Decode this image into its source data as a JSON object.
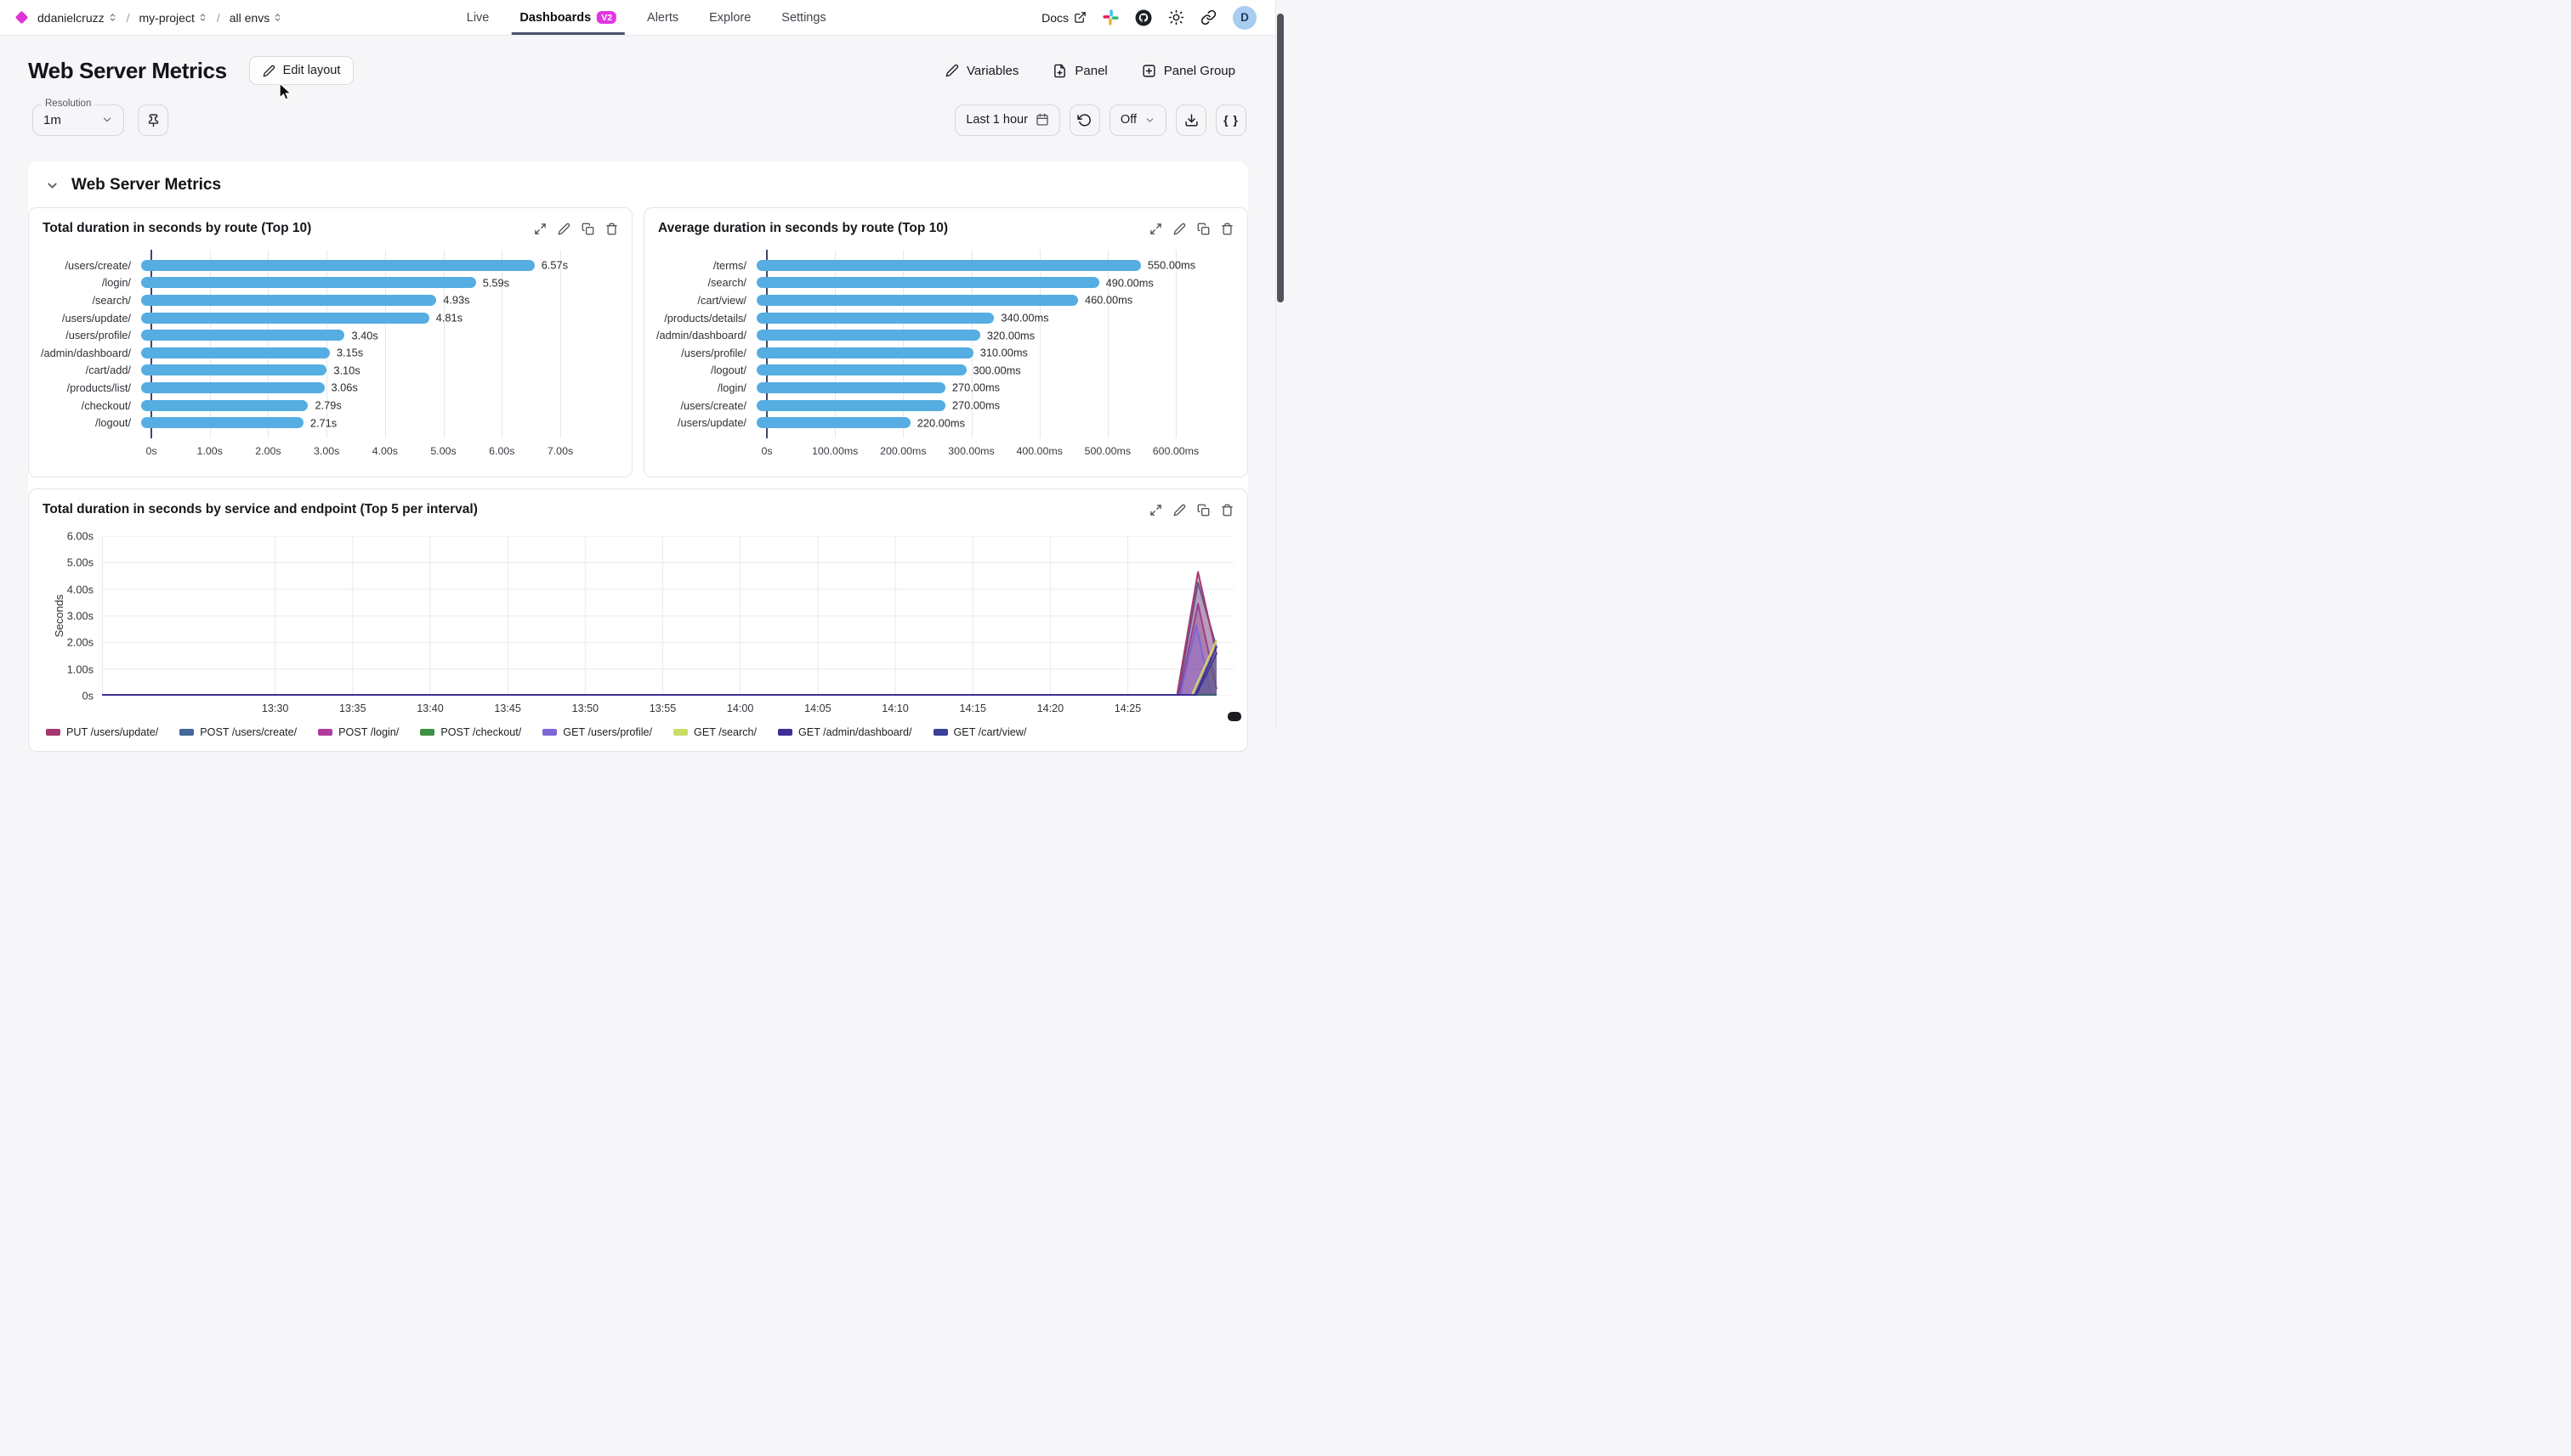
{
  "colors": {
    "accent_magenta": "#e136e1",
    "logo": "#de34d4",
    "tab_underline": "#47536b",
    "bar_blue": "#55ade2",
    "avatar_bg": "#a9cdf1"
  },
  "icons": {
    "logo": "diamond",
    "breadcrumb_selector": "chevrons-up-down",
    "docs": "external-link",
    "community": "slack-pinwheel",
    "source": "github-cat",
    "theme": "sun",
    "share": "link-chain",
    "edit": "pencil",
    "add_panel": "file-plus",
    "add_panel_group": "square-plus",
    "pin": "pin",
    "time_range": "calendar",
    "refresh": "rotate-ccw",
    "download": "download-tray",
    "json": "curly-braces",
    "collapse": "chevron-down",
    "panel_expand": "diagonal-arrows",
    "panel_edit": "pencil",
    "panel_duplicate": "copy",
    "panel_delete": "trash"
  },
  "navbar": {
    "breadcrumb": [
      {
        "label": "ddanielcruzz"
      },
      {
        "label": "my-project"
      },
      {
        "label": "all envs"
      }
    ],
    "separator": "/",
    "tabs": [
      {
        "label": "Live",
        "active": false
      },
      {
        "label": "Dashboards",
        "active": true,
        "badge": "V2"
      },
      {
        "label": "Alerts",
        "active": false
      },
      {
        "label": "Explore",
        "active": false
      },
      {
        "label": "Settings",
        "active": false
      }
    ],
    "docs": "Docs",
    "avatar": "D"
  },
  "header": {
    "title": "Web Server Metrics",
    "edit_layout": "Edit layout",
    "variables": "Variables",
    "panel": "Panel",
    "panel_group": "Panel Group"
  },
  "controls": {
    "resolution_label": "Resolution",
    "resolution_value": "1m",
    "time_range": "Last 1 hour",
    "refresh_mode": "Off",
    "braces": "{ }"
  },
  "section": {
    "title": "Web Server Metrics"
  },
  "chart_data": [
    {
      "type": "bar",
      "orientation": "horizontal",
      "title": "Total duration in seconds by route (Top 10)",
      "categories": [
        "/users/create/",
        "/login/",
        "/search/",
        "/users/update/",
        "/users/profile/",
        "/admin/dashboard/",
        "/cart/add/",
        "/products/list/",
        "/checkout/",
        "/logout/"
      ],
      "values": [
        6.57,
        5.59,
        4.93,
        4.81,
        3.4,
        3.15,
        3.1,
        3.06,
        2.79,
        2.71
      ],
      "value_labels": [
        "6.57s",
        "5.59s",
        "4.93s",
        "4.81s",
        "3.40s",
        "3.15s",
        "3.10s",
        "3.06s",
        "2.79s",
        "2.71s"
      ],
      "xlim": [
        0,
        7
      ],
      "xticks": [
        "0s",
        "1.00s",
        "2.00s",
        "3.00s",
        "4.00s",
        "5.00s",
        "6.00s",
        "7.00s"
      ],
      "grid": true,
      "bar_color": "#55ade2"
    },
    {
      "type": "bar",
      "orientation": "horizontal",
      "title": "Average duration in seconds by route (Top 10)",
      "categories": [
        "/terms/",
        "/search/",
        "/cart/view/",
        "/products/details/",
        "/admin/dashboard/",
        "/users/profile/",
        "/logout/",
        "/login/",
        "/users/create/",
        "/users/update/"
      ],
      "values": [
        550,
        490,
        460,
        340,
        320,
        310,
        300,
        270,
        270,
        220
      ],
      "value_labels": [
        "550.00ms",
        "490.00ms",
        "460.00ms",
        "340.00ms",
        "320.00ms",
        "310.00ms",
        "300.00ms",
        "270.00ms",
        "270.00ms",
        "220.00ms"
      ],
      "xlim": [
        0,
        600
      ],
      "xticks": [
        "0s",
        "100.00ms",
        "200.00ms",
        "300.00ms",
        "400.00ms",
        "500.00ms",
        "600.00ms"
      ],
      "grid": true,
      "bar_color": "#55ade2"
    },
    {
      "type": "area",
      "title": "Total duration in seconds by service and endpoint (Top 5 per interval)",
      "ylabel": "Seconds",
      "ylim": [
        0,
        6
      ],
      "yticks": [
        "6.00s",
        "5.00s",
        "4.00s",
        "3.00s",
        "2.00s",
        "1.00s",
        "0s"
      ],
      "xticks": [
        "13:30",
        "13:35",
        "13:40",
        "13:45",
        "13:50",
        "13:55",
        "14:00",
        "14:05",
        "14:10",
        "14:15",
        "14:20",
        "14:25"
      ],
      "grid": true,
      "legend_position": "bottom",
      "note": "All series flat at 0s for most of the window, spike near 14:27 cut at right edge; x points are fractions of plot width, y in seconds",
      "series": [
        {
          "name": "PUT /users/update/",
          "color": "#a73670",
          "points": [
            [
              0,
              0
            ],
            [
              0.95,
              0
            ],
            [
              0.9685,
              4.65
            ],
            [
              0.985,
              1.55
            ]
          ]
        },
        {
          "name": "POST /users/create/",
          "color": "#44679c",
          "points": [
            [
              0,
              0
            ],
            [
              0.951,
              0
            ],
            [
              0.9685,
              4.25
            ],
            [
              0.985,
              1.8
            ]
          ]
        },
        {
          "name": "POST /login/",
          "color": "#b13a9e",
          "points": [
            [
              0,
              0
            ],
            [
              0.952,
              0
            ],
            [
              0.9685,
              3.45
            ],
            [
              0.985,
              0.25
            ]
          ]
        },
        {
          "name": "POST /checkout/",
          "color": "#3f8f44",
          "points": [
            [
              0,
              0
            ],
            [
              0.985,
              0
            ]
          ]
        },
        {
          "name": "GET /users/profile/",
          "color": "#7e66d6",
          "points": [
            [
              0,
              0
            ],
            [
              0.953,
              0
            ],
            [
              0.967,
              2.65
            ],
            [
              0.98,
              0.05
            ],
            [
              0.985,
              0.05
            ]
          ]
        },
        {
          "name": "GET /search/",
          "color": "#ccdd66",
          "points": [
            [
              0,
              0
            ],
            [
              0.963,
              0
            ],
            [
              0.985,
              2.1
            ]
          ]
        },
        {
          "name": "GET /admin/dashboard/",
          "color": "#3f2d96",
          "points": [
            [
              0,
              0
            ],
            [
              0.966,
              0
            ],
            [
              0.985,
              1.85
            ]
          ]
        },
        {
          "name": "GET /cart/view/",
          "color": "#3b4099",
          "points": [
            [
              0,
              0
            ],
            [
              0.967,
              0
            ],
            [
              0.985,
              1.6
            ]
          ]
        }
      ]
    }
  ]
}
